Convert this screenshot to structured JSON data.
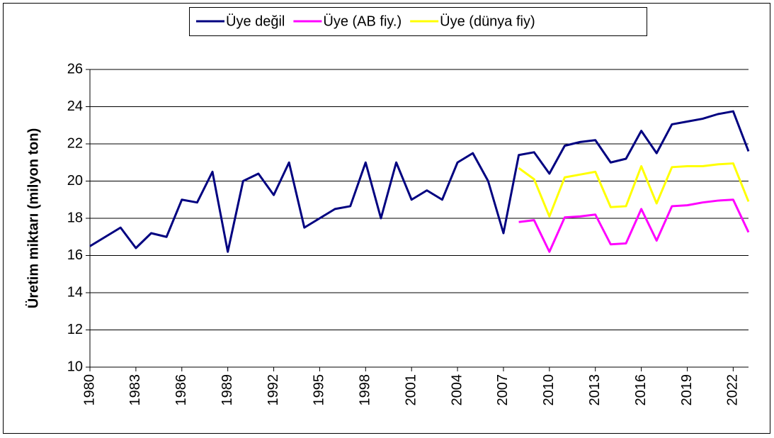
{
  "chart_data": {
    "type": "line",
    "ylabel": "Üretim miktarı (milyon ton)",
    "x": [
      1980,
      1981,
      1982,
      1983,
      1984,
      1985,
      1986,
      1987,
      1988,
      1989,
      1990,
      1991,
      1992,
      1993,
      1994,
      1995,
      1996,
      1997,
      1998,
      1999,
      2000,
      2001,
      2002,
      2003,
      2004,
      2005,
      2006,
      2007,
      2008,
      2009,
      2010,
      2011,
      2012,
      2013,
      2014,
      2015,
      2016,
      2017,
      2018,
      2019,
      2020,
      2021,
      2022,
      2023
    ],
    "series": [
      {
        "name": "Üye değil",
        "color": "#000080",
        "values": [
          16.5,
          17.0,
          17.5,
          16.4,
          17.2,
          17.0,
          19.0,
          18.85,
          20.5,
          16.2,
          20.0,
          20.4,
          19.25,
          21.0,
          17.5,
          18.0,
          18.5,
          18.65,
          21.0,
          18.0,
          21.0,
          19.0,
          19.5,
          19.0,
          21.0,
          21.5,
          20.0,
          17.2,
          21.4,
          21.55,
          20.4,
          21.9,
          22.1,
          22.2,
          21.0,
          21.2,
          22.7,
          21.5,
          23.05,
          23.2,
          23.35,
          23.6,
          23.75,
          21.6
        ]
      },
      {
        "name": "Üye (AB fiy.)",
        "color": "#ff00ff",
        "values": [
          null,
          null,
          null,
          null,
          null,
          null,
          null,
          null,
          null,
          null,
          null,
          null,
          null,
          null,
          null,
          null,
          null,
          null,
          null,
          null,
          null,
          null,
          null,
          null,
          null,
          null,
          null,
          null,
          17.8,
          17.9,
          16.2,
          18.05,
          18.1,
          18.2,
          16.6,
          16.65,
          18.5,
          16.8,
          18.65,
          18.7,
          18.85,
          18.95,
          19.0,
          17.25
        ]
      },
      {
        "name": "Üye (dünya fiy)",
        "color": "#ffff00",
        "values": [
          null,
          null,
          null,
          null,
          null,
          null,
          null,
          null,
          null,
          null,
          null,
          null,
          null,
          null,
          null,
          null,
          null,
          null,
          null,
          null,
          null,
          null,
          null,
          null,
          null,
          null,
          null,
          null,
          20.7,
          20.1,
          18.1,
          20.2,
          20.35,
          20.5,
          18.6,
          18.65,
          20.8,
          18.8,
          20.75,
          20.8,
          20.8,
          20.9,
          20.95,
          18.9
        ]
      }
    ],
    "xlim": [
      1980,
      2023
    ],
    "xticks": [
      1980,
      1983,
      1986,
      1989,
      1992,
      1995,
      1998,
      2001,
      2004,
      2007,
      2010,
      2013,
      2016,
      2019,
      2022
    ],
    "ylim": [
      10,
      26
    ],
    "yticks": [
      10,
      12,
      14,
      16,
      18,
      20,
      22,
      24,
      26
    ],
    "grid": true,
    "legend": "top"
  }
}
